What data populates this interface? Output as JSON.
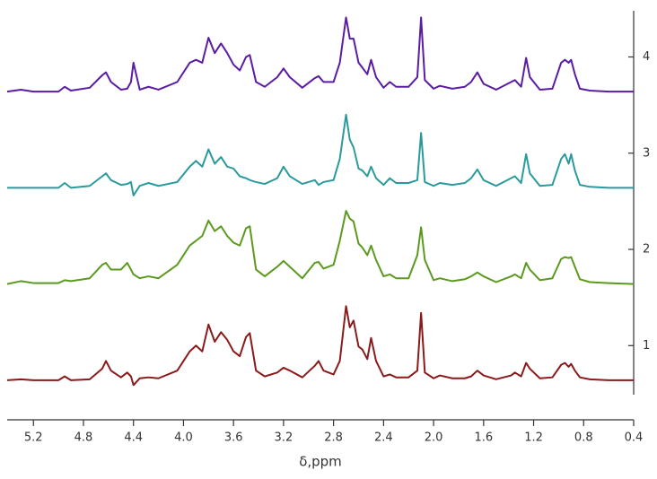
{
  "chart_data": {
    "type": "line",
    "x_label": "δ,ppm",
    "x": [
      5.41,
      5.3,
      5.2,
      5.0,
      4.95,
      4.9,
      4.75,
      4.65,
      4.62,
      4.58,
      4.5,
      4.45,
      4.42,
      4.4,
      4.35,
      4.28,
      4.2,
      4.05,
      3.95,
      3.9,
      3.85,
      3.8,
      3.75,
      3.7,
      3.65,
      3.6,
      3.55,
      3.5,
      3.47,
      3.42,
      3.35,
      3.25,
      3.2,
      3.15,
      3.05,
      2.95,
      2.92,
      2.88,
      2.8,
      2.75,
      2.7,
      2.67,
      2.64,
      2.6,
      2.57,
      2.53,
      2.5,
      2.46,
      2.4,
      2.35,
      2.3,
      2.2,
      2.13,
      2.1,
      2.07,
      2.0,
      1.95,
      1.85,
      1.75,
      1.7,
      1.65,
      1.6,
      1.5,
      1.38,
      1.35,
      1.3,
      1.26,
      1.23,
      1.15,
      1.05,
      0.98,
      0.95,
      0.92,
      0.9,
      0.87,
      0.83,
      0.75,
      0.6,
      0.4
    ],
    "series": [
      {
        "color": "#8b1a1a",
        "values": [
          0.64,
          0.65,
          0.64,
          0.64,
          0.68,
          0.64,
          0.65,
          0.76,
          0.84,
          0.74,
          0.67,
          0.72,
          0.68,
          0.59,
          0.66,
          0.67,
          0.66,
          0.74,
          0.94,
          1.0,
          0.94,
          1.22,
          1.04,
          1.14,
          1.06,
          0.94,
          0.89,
          1.09,
          1.13,
          0.74,
          0.68,
          0.72,
          0.77,
          0.74,
          0.67,
          0.79,
          0.84,
          0.74,
          0.7,
          0.84,
          1.41,
          1.19,
          1.26,
          0.99,
          0.96,
          0.86,
          1.08,
          0.84,
          0.68,
          0.7,
          0.67,
          0.67,
          0.74,
          1.34,
          0.72,
          0.66,
          0.69,
          0.66,
          0.66,
          0.68,
          0.74,
          0.69,
          0.65,
          0.69,
          0.72,
          0.68,
          0.82,
          0.76,
          0.66,
          0.67,
          0.8,
          0.82,
          0.78,
          0.81,
          0.74,
          0.67,
          0.65,
          0.64,
          0.64
        ]
      },
      {
        "color": "#5b9a1f",
        "values": [
          1.64,
          1.67,
          1.65,
          1.65,
          1.68,
          1.67,
          1.7,
          1.84,
          1.86,
          1.79,
          1.79,
          1.86,
          1.79,
          1.74,
          1.7,
          1.72,
          1.7,
          1.84,
          2.04,
          2.09,
          2.14,
          2.3,
          2.19,
          2.24,
          2.14,
          2.07,
          2.04,
          2.22,
          2.24,
          1.79,
          1.72,
          1.82,
          1.88,
          1.82,
          1.7,
          1.86,
          1.87,
          1.8,
          1.84,
          2.09,
          2.4,
          2.32,
          2.29,
          2.06,
          2.02,
          1.94,
          2.04,
          1.89,
          1.72,
          1.74,
          1.7,
          1.7,
          1.94,
          2.23,
          1.89,
          1.68,
          1.7,
          1.67,
          1.69,
          1.72,
          1.76,
          1.72,
          1.66,
          1.72,
          1.74,
          1.7,
          1.86,
          1.79,
          1.68,
          1.7,
          1.9,
          1.92,
          1.91,
          1.92,
          1.82,
          1.69,
          1.66,
          1.65,
          1.64
        ]
      },
      {
        "color": "#2a9a9c",
        "values": [
          2.64,
          2.64,
          2.64,
          2.64,
          2.69,
          2.64,
          2.66,
          2.76,
          2.79,
          2.72,
          2.67,
          2.68,
          2.7,
          2.56,
          2.66,
          2.69,
          2.66,
          2.7,
          2.86,
          2.92,
          2.86,
          3.04,
          2.89,
          2.96,
          2.86,
          2.84,
          2.76,
          2.74,
          2.72,
          2.7,
          2.68,
          2.74,
          2.86,
          2.76,
          2.68,
          2.72,
          2.67,
          2.7,
          2.72,
          2.94,
          3.4,
          3.14,
          3.06,
          2.84,
          2.82,
          2.76,
          2.86,
          2.74,
          2.67,
          2.74,
          2.69,
          2.69,
          2.72,
          3.21,
          2.7,
          2.66,
          2.69,
          2.67,
          2.69,
          2.74,
          2.83,
          2.72,
          2.66,
          2.74,
          2.76,
          2.69,
          2.99,
          2.79,
          2.66,
          2.67,
          2.94,
          2.99,
          2.89,
          2.99,
          2.82,
          2.67,
          2.65,
          2.64,
          2.64
        ]
      },
      {
        "color": "#5a1ca2",
        "values": [
          3.64,
          3.66,
          3.64,
          3.64,
          3.69,
          3.65,
          3.68,
          3.81,
          3.84,
          3.74,
          3.66,
          3.67,
          3.74,
          3.94,
          3.66,
          3.69,
          3.66,
          3.74,
          3.94,
          3.97,
          3.94,
          4.2,
          4.04,
          4.14,
          4.04,
          3.92,
          3.86,
          4.0,
          4.02,
          3.74,
          3.69,
          3.79,
          3.88,
          3.79,
          3.68,
          3.78,
          3.8,
          3.74,
          3.74,
          3.94,
          4.41,
          4.19,
          4.19,
          3.94,
          3.89,
          3.82,
          3.97,
          3.79,
          3.68,
          3.74,
          3.69,
          3.69,
          3.79,
          4.41,
          3.76,
          3.67,
          3.7,
          3.67,
          3.69,
          3.74,
          3.84,
          3.72,
          3.66,
          3.74,
          3.76,
          3.69,
          3.99,
          3.79,
          3.66,
          3.67,
          3.94,
          3.97,
          3.94,
          3.97,
          3.82,
          3.67,
          3.65,
          3.64,
          3.64
        ]
      }
    ],
    "xlim": [
      5.41,
      0.4
    ],
    "xticks": [
      5.2,
      4.8,
      4.4,
      {
        "value": 4,
        "label": "4.0"
      },
      3.6,
      3.2,
      2.8,
      2.4,
      {
        "value": 2,
        "label": "2.0"
      },
      1.6,
      1.2,
      0.8,
      0.4
    ],
    "ylim": [
      0.49,
      4.48
    ],
    "yticks": [
      1,
      2,
      3,
      4
    ],
    "y_axis_side": "right"
  }
}
